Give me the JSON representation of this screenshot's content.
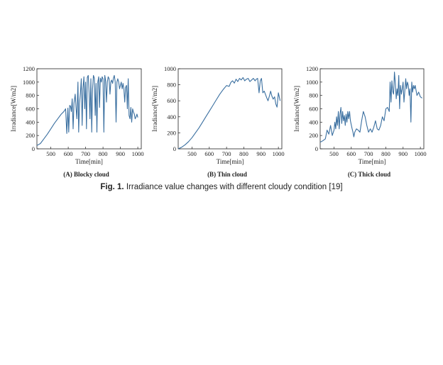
{
  "figure": {
    "caption_label": "Fig. 1.",
    "caption_text": " Irradiance value changes with different cloudy condition [19]"
  },
  "colors": {
    "line": "#3a6fa0",
    "axis": "#222222"
  },
  "chart_data": [
    {
      "type": "line",
      "title": "(A) Blocky cloud",
      "xlabel": "Time[min]",
      "ylabel": "Irradiance[W/m2]",
      "xlim": [
        420,
        1020
      ],
      "ylim": [
        0,
        1200
      ],
      "xticks": [
        500,
        600,
        700,
        800,
        900,
        1000
      ],
      "xtick_labels": [
        "500",
        "600",
        "700",
        "800",
        "900",
        "1000"
      ],
      "yticks": [
        0,
        200,
        400,
        600,
        800,
        1000,
        1200
      ],
      "ytick_labels": [
        "0",
        "200",
        "400",
        "600",
        "800",
        "1000",
        "1200"
      ],
      "series": [
        {
          "x": [
            420,
            440,
            460,
            480,
            500,
            520,
            540,
            560,
            575,
            585,
            592,
            598,
            603,
            608,
            613,
            618,
            623,
            628,
            633,
            640,
            645,
            650,
            656,
            660,
            665,
            670,
            675,
            680,
            685,
            690,
            695,
            700,
            705,
            710,
            715,
            720,
            725,
            730,
            735,
            740,
            745,
            750,
            755,
            760,
            765,
            770,
            775,
            780,
            785,
            790,
            795,
            800,
            805,
            810,
            815,
            820,
            825,
            830,
            835,
            840,
            845,
            850,
            855,
            860,
            865,
            870,
            875,
            880,
            885,
            890,
            895,
            900,
            905,
            910,
            915,
            920,
            925,
            930,
            935,
            940,
            945,
            950,
            955,
            960,
            965,
            970,
            975,
            980,
            985,
            990,
            995,
            1000
          ],
          "y": [
            50,
            80,
            150,
            220,
            300,
            380,
            450,
            520,
            560,
            600,
            230,
            610,
            250,
            650,
            640,
            560,
            750,
            300,
            680,
            820,
            620,
            450,
            1000,
            250,
            680,
            840,
            1050,
            350,
            900,
            1080,
            600,
            1000,
            300,
            1070,
            1100,
            850,
            450,
            1050,
            250,
            900,
            1100,
            1060,
            500,
            980,
            250,
            1000,
            1080,
            620,
            1060,
            1000,
            1080,
            1050,
            250,
            1100,
            1020,
            700,
            1000,
            1080,
            1050,
            820,
            1000,
            1030,
            980,
            1060,
            1100,
            1000,
            400,
            1000,
            1050,
            1000,
            900,
            950,
            1000,
            900,
            980,
            900,
            700,
            920,
            950,
            600,
            1050,
            500,
            450,
            620,
            400,
            600,
            550,
            520,
            450,
            480,
            520,
            470
          ]
        }
      ]
    },
    {
      "type": "line",
      "title": "(B) Thin cloud",
      "xlabel": "Time[min]",
      "ylabel": "Irradiance[W/m2]",
      "xlim": [
        420,
        1020
      ],
      "ylim": [
        0,
        1000
      ],
      "xticks": [
        500,
        600,
        700,
        800,
        900,
        1000
      ],
      "xtick_labels": [
        "500",
        "600",
        "700",
        "800",
        "900",
        "1000"
      ],
      "yticks": [
        0,
        200,
        400,
        600,
        800,
        1000
      ],
      "ytick_labels": [
        "0",
        "200",
        "400",
        "600",
        "800",
        "1000"
      ],
      "series": [
        {
          "x": [
            420,
            440,
            460,
            480,
            500,
            520,
            540,
            560,
            580,
            600,
            620,
            640,
            660,
            680,
            700,
            715,
            725,
            735,
            745,
            755,
            765,
            775,
            785,
            795,
            805,
            815,
            825,
            835,
            845,
            855,
            865,
            872,
            880,
            888,
            895,
            902,
            910,
            918,
            925,
            932,
            940,
            948,
            955,
            962,
            970,
            978,
            985,
            992,
            1000,
            1010
          ],
          "y": [
            0,
            20,
            50,
            90,
            140,
            200,
            260,
            330,
            400,
            470,
            540,
            610,
            680,
            740,
            790,
            780,
            830,
            850,
            820,
            870,
            840,
            880,
            860,
            890,
            850,
            870,
            880,
            840,
            860,
            880,
            850,
            870,
            880,
            700,
            850,
            880,
            700,
            720,
            680,
            640,
            600,
            660,
            720,
            660,
            620,
            650,
            560,
            520,
            700,
            600
          ]
        }
      ]
    },
    {
      "type": "line",
      "title": "(C) Thick cloud",
      "xlabel": "Time[min]",
      "ylabel": "Irradiance[W/m2]",
      "xlim": [
        420,
        1020
      ],
      "ylim": [
        0,
        1200
      ],
      "xticks": [
        500,
        600,
        700,
        800,
        900,
        1000
      ],
      "xtick_labels": [
        "500",
        "600",
        "700",
        "800",
        "900",
        "1000"
      ],
      "yticks": [
        0,
        200,
        400,
        600,
        800,
        1000,
        1200
      ],
      "ytick_labels": [
        "0",
        "200",
        "400",
        "600",
        "800",
        "1000",
        "1200"
      ],
      "series": [
        {
          "x": [
            420,
            435,
            450,
            460,
            470,
            480,
            490,
            500,
            505,
            510,
            515,
            520,
            525,
            530,
            535,
            540,
            545,
            550,
            555,
            560,
            565,
            570,
            575,
            580,
            585,
            590,
            595,
            600,
            605,
            610,
            615,
            620,
            630,
            640,
            650,
            660,
            670,
            680,
            690,
            700,
            710,
            720,
            730,
            740,
            750,
            760,
            770,
            780,
            790,
            800,
            810,
            820,
            825,
            830,
            835,
            840,
            845,
            850,
            855,
            860,
            865,
            870,
            875,
            880,
            885,
            890,
            895,
            900,
            905,
            910,
            915,
            920,
            925,
            930,
            935,
            940,
            945,
            950,
            955,
            960,
            965,
            970,
            980,
            990,
            1000,
            1010
          ],
          "y": [
            100,
            120,
            150,
            280,
            220,
            350,
            200,
            280,
            400,
            300,
            480,
            350,
            560,
            300,
            520,
            620,
            380,
            560,
            420,
            500,
            350,
            520,
            400,
            560,
            450,
            560,
            420,
            360,
            300,
            250,
            180,
            250,
            300,
            280,
            250,
            420,
            560,
            480,
            350,
            250,
            300,
            250,
            320,
            420,
            300,
            280,
            350,
            480,
            420,
            600,
            620,
            560,
            1000,
            700,
            1020,
            860,
            820,
            1150,
            980,
            750,
            900,
            800,
            1100,
            600,
            950,
            820,
            900,
            1000,
            700,
            860,
            1050,
            900,
            1000,
            950,
            800,
            900,
            400,
            1000,
            850,
            950,
            900,
            950,
            800,
            850,
            780,
            760
          ]
        }
      ]
    }
  ]
}
